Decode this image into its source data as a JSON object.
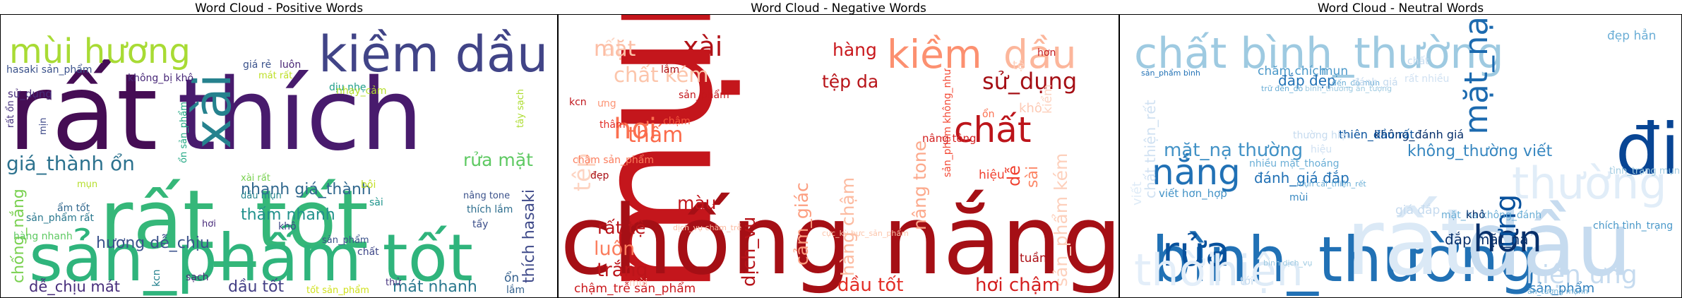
{
  "chart_data": [
    {
      "type": "wordcloud",
      "title": "Word Cloud - Positive Words",
      "colormap": "viridis",
      "words": [
        {
          "text": "rất",
          "color": "#450d54"
        },
        {
          "text": "thích",
          "color": "#481b6d"
        },
        {
          "text": "rất_tốt",
          "color": "#35b779"
        },
        {
          "text": "sản_phẩm tốt",
          "color": "#2fb47c"
        },
        {
          "text": "kiềm dầu",
          "color": "#414487"
        },
        {
          "text": "xài",
          "color": "#26828e"
        },
        {
          "text": "mùi hương",
          "color": "#a8db34"
        },
        {
          "text": "giá_thành ổn",
          "color": "#2c728e"
        },
        {
          "text": "nhanh giá_thành",
          "color": "#31688e"
        },
        {
          "text": "rửa mặt",
          "color": "#5ec962"
        },
        {
          "text": "hương dễ_chịu",
          "color": "#3b528b"
        },
        {
          "text": "thấm nhanh",
          "color": "#21918c"
        },
        {
          "text": "chống_nắng",
          "color": "#7ad151"
        },
        {
          "text": "dễ_chịu mát",
          "color": "#472d7b"
        },
        {
          "text": "dầu tốt",
          "color": "#433e85"
        },
        {
          "text": "mát nhanh",
          "color": "#2a788e"
        },
        {
          "text": "thích hasaki",
          "color": "#3e4989"
        },
        {
          "text": "hasaki sản_phẩm",
          "color": "#3b528b"
        },
        {
          "text": "không_bị khô",
          "color": "#482878"
        },
        {
          "text": "giá rẻ",
          "color": "#3b528b"
        },
        {
          "text": "luôn",
          "color": "#482475"
        },
        {
          "text": "mát rất",
          "color": "#bddf26"
        },
        {
          "text": "dịu nhẹ",
          "color": "#1f9e89"
        },
        {
          "text": "nhạy_cảm",
          "color": "#b5de2b"
        },
        {
          "text": "tây sạch",
          "color": "#addc30"
        },
        {
          "text": "sử_dụng",
          "color": "#472c7a"
        },
        {
          "text": "rất ổn",
          "color": "#46327e"
        },
        {
          "text": "mịn",
          "color": "#3e4a89"
        },
        {
          "text": "ổn sản_phẩm",
          "color": "#22a884"
        },
        {
          "text": "xài rất",
          "color": "#7ad151"
        },
        {
          "text": "dầu mụn",
          "color": "#25848e"
        },
        {
          "text": "nâng tone",
          "color": "#3b528b"
        },
        {
          "text": "bôi",
          "color": "#c2df23"
        },
        {
          "text": "sài",
          "color": "#1f948c"
        },
        {
          "text": "mụn",
          "color": "#b5de2b"
        },
        {
          "text": "ẩm tốt",
          "color": "#31688e"
        },
        {
          "text": "sản_phẩm rất",
          "color": "#2a788e"
        },
        {
          "text": "hàng nhanh",
          "color": "#5ec962"
        },
        {
          "text": "hơi",
          "color": "#472a7a"
        },
        {
          "text": "khô",
          "color": "#3f4788"
        },
        {
          "text": "thích lắm",
          "color": "#2e6e8e"
        },
        {
          "text": "tẩy",
          "color": "#3c4f8a"
        },
        {
          "text": "sản_phẩm",
          "color": "#3b528b"
        },
        {
          "text": "chất",
          "color": "#3f4788"
        },
        {
          "text": "ổn",
          "color": "#34608d"
        },
        {
          "text": "kcn",
          "color": "#26828e"
        },
        {
          "text": "sạch",
          "color": "#482878"
        },
        {
          "text": "thử",
          "color": "#46337f"
        },
        {
          "text": "tốt sản_phẩm",
          "color": "#d0e11c"
        },
        {
          "text": "lắm",
          "color": "#34618d"
        }
      ]
    },
    {
      "type": "wordcloud",
      "title": "Word Cloud - Negative Words",
      "colormap": "Reds",
      "words": [
        {
          "text": "rất",
          "color": "#fdd5c4"
        },
        {
          "text": "xài",
          "color": "#b11218"
        },
        {
          "text": "mụn",
          "color": "#c4161c"
        },
        {
          "text": "chống nắng",
          "color": "#a50f15"
        },
        {
          "text": "kiềm",
          "color": "#fc9070"
        },
        {
          "text": "dầu",
          "color": "#fcb69b"
        },
        {
          "text": "mặt",
          "color": "#fcbea5"
        },
        {
          "text": "chất",
          "color": "#bc141a"
        },
        {
          "text": "sử_dụng",
          "color": "#a50f15"
        },
        {
          "text": "hơi",
          "color": "#fb7050"
        },
        {
          "text": "tệp da",
          "color": "#b81419"
        },
        {
          "text": "hàng",
          "color": "#c9181d"
        },
        {
          "text": "hơn",
          "color": "#c21a1d"
        },
        {
          "text": "chất kém",
          "color": "#fcc5ab"
        },
        {
          "text": "thấm",
          "color": "#fb6a4a"
        },
        {
          "text": "tệp",
          "color": "#fdd4c2"
        },
        {
          "text": "màu",
          "color": "#c0151b"
        },
        {
          "text": "rất tệ",
          "color": "#b81419"
        },
        {
          "text": "luôn",
          "color": "#fb7d5d"
        },
        {
          "text": "trắng",
          "color": "#bc141a"
        },
        {
          "text": "dịch_vụ",
          "color": "#b61319"
        },
        {
          "text": "cảm_giác",
          "color": "#fc9e80"
        },
        {
          "text": "hàng chậm",
          "color": "#fcbba1"
        },
        {
          "text": "nâng tone",
          "color": "#fca98c"
        },
        {
          "text": "sản_phẩm không_như",
          "color": "#f34935"
        },
        {
          "text": "sản_phẩm kém",
          "color": "#fdd0bc"
        },
        {
          "text": "dầu tốt",
          "color": "#e32f27"
        },
        {
          "text": "hơi chậm",
          "color": "#d42020"
        },
        {
          "text": "tuần",
          "color": "#ad1117"
        },
        {
          "text": "sài",
          "color": "#fc8767"
        },
        {
          "text": "dễ",
          "color": "#f0402f"
        },
        {
          "text": "hiệu",
          "color": "#f0402f"
        },
        {
          "text": "chậm_trễ sản_phẩm",
          "color": "#ca181d"
        },
        {
          "text": "chậm sản_phẩm",
          "color": "#fb7c5c"
        },
        {
          "text": "sản_phẩm",
          "color": "#c3161b"
        },
        {
          "text": "chậm",
          "color": "#f6583e"
        },
        {
          "text": "thâm",
          "color": "#e22e27"
        },
        {
          "text": "lắm",
          "color": "#ad1117"
        },
        {
          "text": "kcn",
          "color": "#c0151b"
        },
        {
          "text": "ưng",
          "color": "#fc9576"
        },
        {
          "text": "ổn",
          "color": "#fb7050"
        },
        {
          "text": "khô",
          "color": "#fdcab5"
        },
        {
          "text": "nâng tông",
          "color": "#d32020"
        },
        {
          "text": "đẹp",
          "color": "#a91016"
        },
        {
          "text": "dịch_vụ chăm_trễ",
          "color": "#fcbba1"
        },
        {
          "text": "cực_kỳ bực_sản_phẩm",
          "color": "#fcc5ab"
        },
        {
          "text": "mùi",
          "color": "#fdcebb"
        },
        {
          "text": "kiểm",
          "color": "#fdd4c2"
        },
        {
          "text": "tệ",
          "color": "#fdd0bc"
        }
      ]
    },
    {
      "type": "wordcloud",
      "title": "Word Cloud - Neutral Words",
      "colormap": "Blues",
      "words": [
        {
          "text": "bình_thường",
          "color": "#2171b5"
        },
        {
          "text": "đi",
          "color": "#084594"
        },
        {
          "text": "chất bình_thường",
          "color": "#9ecae1"
        },
        {
          "text": "rất",
          "color": "#dbe9f6"
        },
        {
          "text": "dầu",
          "color": "#c6dbef"
        },
        {
          "text": "rửa",
          "color": "#08519c"
        },
        {
          "text": "hơn",
          "color": "#08306b"
        },
        {
          "text": "nắng",
          "color": "#2171b5"
        },
        {
          "text": "mặt_nạ",
          "color": "#1c6aaf"
        },
        {
          "text": "ưng",
          "color": "#08519c"
        },
        {
          "text": "thời",
          "color": "#e3eef9"
        },
        {
          "text": "hiện",
          "color": "#deebf7"
        },
        {
          "text": "hiện ưng",
          "color": "#c6dbef"
        },
        {
          "text": "thường",
          "color": "#e1edf8"
        },
        {
          "text": "mặt_nạ thường",
          "color": "#4292c6"
        },
        {
          "text": "đánh_giá đắp",
          "color": "#2171b5"
        },
        {
          "text": "không_thường viết",
          "color": "#3787c0"
        },
        {
          "text": "không_đánh giá",
          "color": "#08306b"
        },
        {
          "text": "thiên_đầu rất",
          "color": "#08519c"
        },
        {
          "text": "đắp mặt_na",
          "color": "#08306b"
        },
        {
          "text": "đẹp hẳn",
          "color": "#6baed6"
        },
        {
          "text": "đắp đẹp",
          "color": "#2171b5"
        },
        {
          "text": "chăm chích",
          "color": "#4a98c9"
        },
        {
          "text": "mụn",
          "color": "#4a98c9"
        },
        {
          "text": "nhiều mặt_thoáng",
          "color": "#6aaed6"
        },
        {
          "text": "mặt_na không_đánh",
          "color": "#6baed6"
        },
        {
          "text": "chích tình_trạng",
          "color": "#4a98c9"
        },
        {
          "text": "sản_phẩm",
          "color": "#2e7ebc"
        },
        {
          "text": "khô",
          "color": "#08306b"
        },
        {
          "text": "giá đắp",
          "color": "#c6dbef"
        },
        {
          "text": "viết hơn_hợp",
          "color": "#4292c6"
        },
        {
          "text": "mùi",
          "color": "#3a8ac2"
        },
        {
          "text": "mụn cải_thiện_rết",
          "color": "#6aaed6"
        },
        {
          "text": "tình_trạng mụn",
          "color": "#9ecae1"
        },
        {
          "text": "sản_phẩm bình",
          "color": "#2171b5"
        },
        {
          "text": "chất",
          "color": "#c6dbef"
        },
        {
          "text": "trữ đến_đó",
          "color": "#6baed6"
        },
        {
          "text": "bình_thường ấn_tượng",
          "color": "#9ecae1"
        },
        {
          "text": "đến_đó mụn",
          "color": "#6baed6"
        },
        {
          "text": "rất nhiều",
          "color": "#d0e1f2"
        },
        {
          "text": "hiệu",
          "color": "#d0e1f2"
        },
        {
          "text": "thường hiệu",
          "color": "#c6dbef"
        },
        {
          "text": "đánh_giá",
          "color": "#c6dbef"
        },
        {
          "text": "chất thiện_rết",
          "color": "#d0e1f2"
        },
        {
          "text": "bình dịch_vụ",
          "color": "#9ecae1"
        },
        {
          "text": "ấn_tượng mạnh",
          "color": "#6baed6"
        },
        {
          "text": "tới",
          "color": "#c6dbef"
        },
        {
          "text": "viết",
          "color": "#deebf7"
        }
      ]
    }
  ]
}
